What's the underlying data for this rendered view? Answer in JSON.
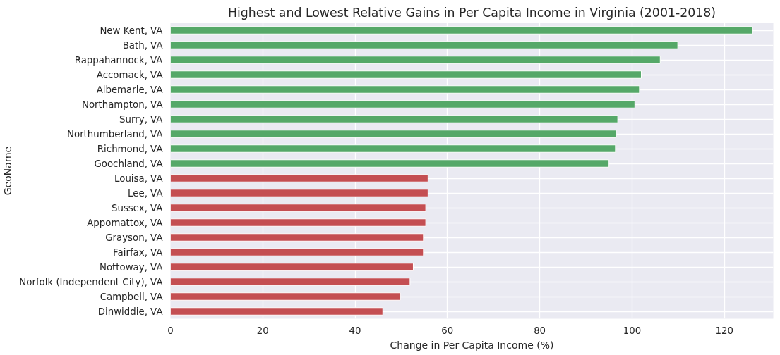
{
  "chart_data": {
    "type": "bar",
    "orientation": "horizontal",
    "title": "Highest and Lowest Relative Gains in Per Capita Income in Virginia (2001-2018)",
    "xlabel": "Change in Per Capita Income (%)",
    "ylabel": "GeoName",
    "categories": [
      "New Kent, VA",
      "Bath, VA",
      "Rappahannock, VA",
      "Accomack, VA",
      "Albemarle, VA",
      "Northampton, VA",
      "Surry, VA",
      "Northumberland, VA",
      "Richmond, VA",
      "Goochland, VA",
      "Louisa, VA",
      "Lee, VA",
      "Sussex, VA",
      "Appomattox, VA",
      "Grayson, VA",
      "Fairfax, VA",
      "Nottoway, VA",
      "Norfolk (Independent City), VA",
      "Campbell, VA",
      "Dinwiddie, VA"
    ],
    "values": [
      126.1,
      109.9,
      106.1,
      102.0,
      101.6,
      100.6,
      96.9,
      96.6,
      96.4,
      95.0,
      55.8,
      55.8,
      55.3,
      55.3,
      54.8,
      54.8,
      52.6,
      51.9,
      49.8,
      46.0
    ],
    "colors": [
      "#55a868",
      "#55a868",
      "#55a868",
      "#55a868",
      "#55a868",
      "#55a868",
      "#55a868",
      "#55a868",
      "#55a868",
      "#55a868",
      "#c44e52",
      "#c44e52",
      "#c44e52",
      "#c44e52",
      "#c44e52",
      "#c44e52",
      "#c44e52",
      "#c44e52",
      "#c44e52",
      "#c44e52"
    ],
    "xlim": [
      0,
      130.6
    ],
    "xticks": [
      0,
      20,
      40,
      60,
      80,
      100,
      120
    ],
    "grid": true
  }
}
